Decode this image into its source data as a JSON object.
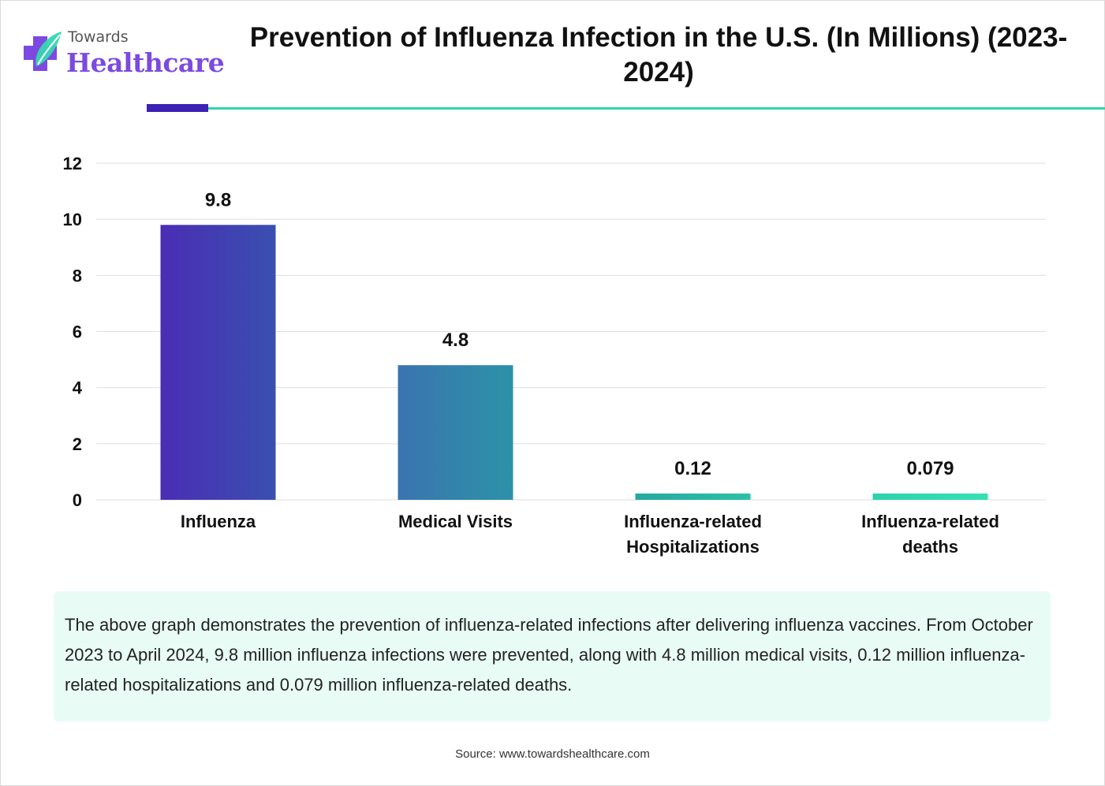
{
  "logo": {
    "line1": "Towards",
    "line2": "Healthcare"
  },
  "title": "Prevention of Influenza Infection in the U.S. (In Millions) (2023-2024)",
  "chart_data": {
    "type": "bar",
    "categories": [
      "Influenza",
      "Medical Visits",
      "Influenza-related Hospitalizations",
      "Influenza-related deaths"
    ],
    "values": [
      9.8,
      4.8,
      0.12,
      0.079
    ],
    "data_labels": [
      "9.8",
      "4.8",
      "0.12",
      "0.079"
    ],
    "y_ticks": [
      "0",
      "2",
      "4",
      "6",
      "8",
      "10",
      "12"
    ],
    "ylim": [
      0,
      12
    ],
    "grid": true,
    "legend": "none"
  },
  "description": "The above graph demonstrates the prevention of influenza-related infections after delivering influenza vaccines. From October 2023 to April 2024, 9.8 million influenza infections were prevented, along with 4.8 million medical visits, 0.12 million influenza-related hospitalizations and 0.079 million influenza-related deaths.",
  "source": "Source: www.towardshealthcare.com",
  "colors": {
    "bar_gradients": [
      [
        "#4a2db4",
        "#3a4fb0"
      ],
      [
        "#3a74b0",
        "#2c92a8"
      ],
      [
        "#26a8a2",
        "#2cc1a6"
      ],
      [
        "#2ed2ac",
        "#34e0b4"
      ]
    ],
    "accent_purple": "#3d22b3",
    "accent_green": "#2fd6a8",
    "box_bg": "#e8fcf5"
  }
}
